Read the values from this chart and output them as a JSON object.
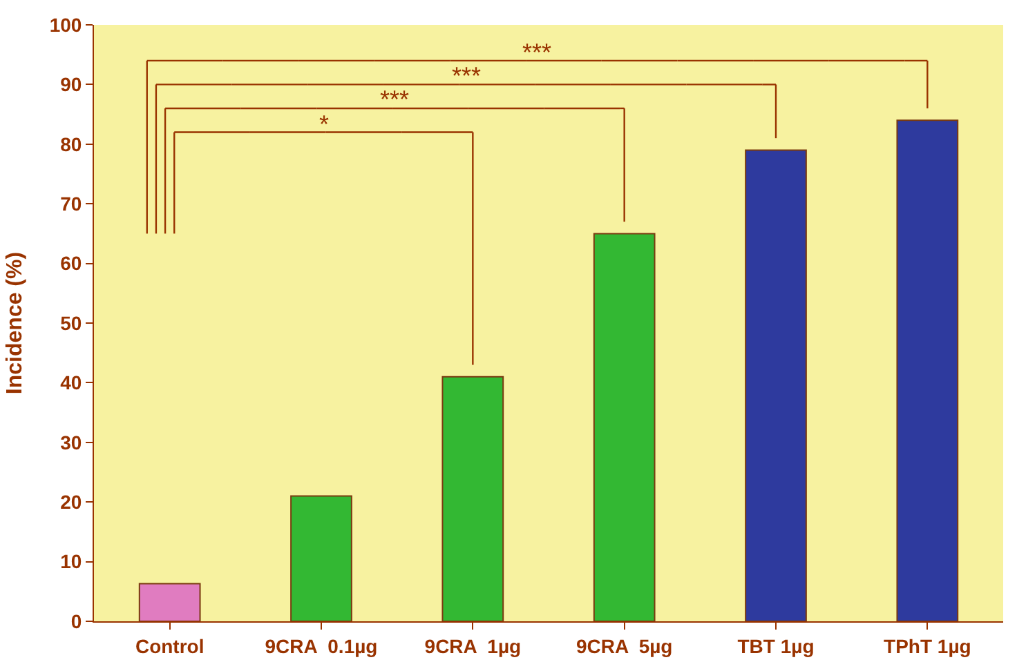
{
  "chart_data": {
    "type": "bar",
    "ylabel": "Incidence (%)",
    "categories": [
      "Control",
      "9CRA  0.1µg",
      "9CRA  1µg",
      "9CRA  5µg",
      "TBT 1µg",
      "TPhT 1µg"
    ],
    "values": [
      6.3,
      21,
      41,
      65,
      79,
      84
    ],
    "colors": [
      "#e07cc0",
      "#33b833",
      "#33b833",
      "#33b833",
      "#2e3a9e",
      "#2e3a9e"
    ],
    "ylim": [
      0,
      100
    ],
    "yticks": [
      0,
      10,
      20,
      30,
      40,
      50,
      60,
      70,
      80,
      90,
      100
    ],
    "grid": false,
    "annotations": [
      "***",
      "***",
      "***",
      "*"
    ]
  }
}
